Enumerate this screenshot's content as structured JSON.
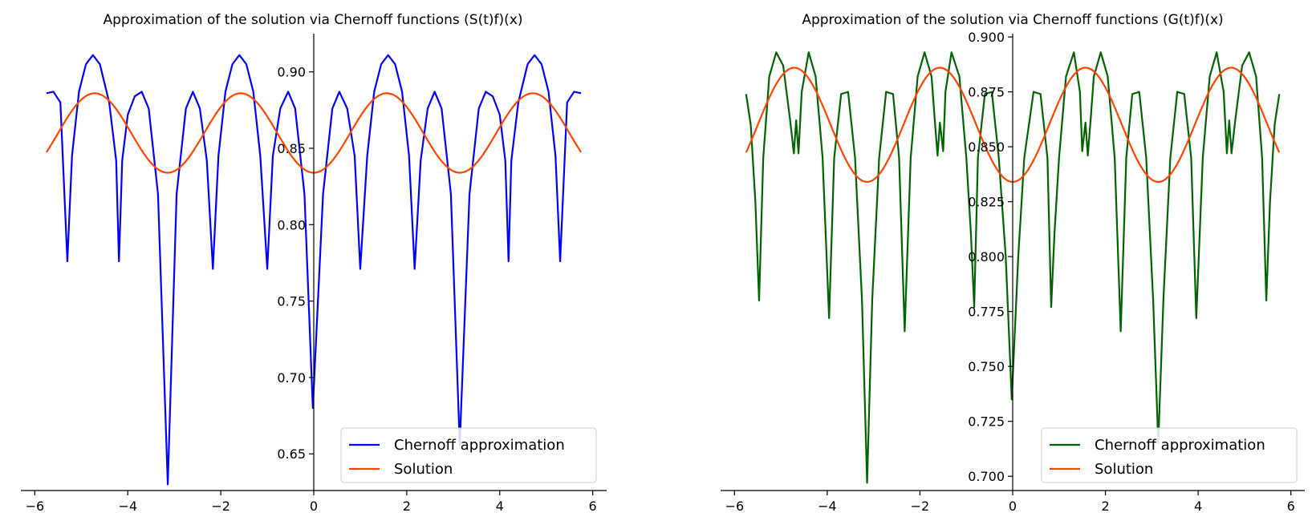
{
  "chart_data": [
    {
      "type": "line",
      "title": "Approximation of the solution via Chernoff functions (S(t)f)(x)",
      "xlabel": "",
      "ylabel": "",
      "xlim": [
        -6.3,
        6.3
      ],
      "ylim": [
        0.626,
        0.925
      ],
      "xticks": [
        -6,
        -4,
        -2,
        0,
        2,
        4,
        6
      ],
      "xtick_labels": [
        "−6",
        "−4",
        "−2",
        "0",
        "2",
        "4",
        "6"
      ],
      "yticks": [
        0.65,
        0.7,
        0.75,
        0.8,
        0.85,
        0.9
      ],
      "ytick_labels": [
        "0.65",
        "0.70",
        "0.75",
        "0.80",
        "0.85",
        "0.90"
      ],
      "x_range": [
        -5.75,
        5.75
      ],
      "grid": false,
      "spines": "centered",
      "legend_position": "lower-right",
      "series": [
        {
          "name": "Chernoff approximation",
          "color": "#0000ff",
          "points": [
            [
              -5.75,
              0.886
            ],
            [
              -5.6,
              0.887
            ],
            [
              -5.45,
              0.88
            ],
            [
              -5.3,
              0.776
            ],
            [
              -5.2,
              0.845
            ],
            [
              -5.05,
              0.887
            ],
            [
              -4.9,
              0.905
            ],
            [
              -4.75,
              0.911
            ],
            [
              -4.6,
              0.905
            ],
            [
              -4.4,
              0.88
            ],
            [
              -4.25,
              0.842
            ],
            [
              -4.19,
              0.776
            ],
            [
              -4.12,
              0.842
            ],
            [
              -4.0,
              0.872
            ],
            [
              -3.85,
              0.884
            ],
            [
              -3.7,
              0.887
            ],
            [
              -3.55,
              0.876
            ],
            [
              -3.35,
              0.82
            ],
            [
              -3.14,
              0.63
            ],
            [
              -2.95,
              0.82
            ],
            [
              -2.75,
              0.876
            ],
            [
              -2.6,
              0.887
            ],
            [
              -2.45,
              0.876
            ],
            [
              -2.3,
              0.842
            ],
            [
              -2.17,
              0.771
            ],
            [
              -2.05,
              0.845
            ],
            [
              -1.9,
              0.887
            ],
            [
              -1.75,
              0.905
            ],
            [
              -1.6,
              0.911
            ],
            [
              -1.45,
              0.905
            ],
            [
              -1.3,
              0.887
            ],
            [
              -1.15,
              0.845
            ],
            [
              -1.0,
              0.771
            ],
            [
              -0.88,
              0.845
            ],
            [
              -0.72,
              0.876
            ],
            [
              -0.55,
              0.887
            ],
            [
              -0.4,
              0.876
            ],
            [
              -0.2,
              0.82
            ],
            [
              -0.02,
              0.68
            ],
            [
              0.2,
              0.82
            ],
            [
              0.4,
              0.876
            ],
            [
              0.55,
              0.887
            ],
            [
              0.72,
              0.876
            ],
            [
              0.88,
              0.845
            ],
            [
              1.0,
              0.771
            ],
            [
              1.15,
              0.845
            ],
            [
              1.3,
              0.887
            ],
            [
              1.45,
              0.905
            ],
            [
              1.6,
              0.911
            ],
            [
              1.75,
              0.905
            ],
            [
              1.9,
              0.887
            ],
            [
              2.05,
              0.845
            ],
            [
              2.17,
              0.771
            ],
            [
              2.3,
              0.842
            ],
            [
              2.45,
              0.876
            ],
            [
              2.6,
              0.887
            ],
            [
              2.75,
              0.876
            ],
            [
              2.95,
              0.82
            ],
            [
              3.14,
              0.656
            ],
            [
              3.35,
              0.82
            ],
            [
              3.55,
              0.876
            ],
            [
              3.7,
              0.887
            ],
            [
              3.85,
              0.884
            ],
            [
              4.0,
              0.872
            ],
            [
              4.12,
              0.842
            ],
            [
              4.19,
              0.776
            ],
            [
              4.25,
              0.842
            ],
            [
              4.4,
              0.88
            ],
            [
              4.6,
              0.905
            ],
            [
              4.75,
              0.911
            ],
            [
              4.9,
              0.905
            ],
            [
              5.05,
              0.887
            ],
            [
              5.2,
              0.845
            ],
            [
              5.3,
              0.776
            ],
            [
              5.45,
              0.88
            ],
            [
              5.6,
              0.887
            ],
            [
              5.75,
              0.886
            ]
          ]
        },
        {
          "name": "Solution",
          "color": "#ff4500",
          "function": "0.86 - 0.026*cos(2x)"
        }
      ]
    },
    {
      "type": "line",
      "title": "Approximation of the solution via Chernoff functions (G(t)f)(x)",
      "xlabel": "",
      "ylabel": "",
      "xlim": [
        -6.3,
        6.3
      ],
      "ylim": [
        0.6935,
        0.9015
      ],
      "xticks": [
        -6,
        -4,
        -2,
        0,
        2,
        4,
        6
      ],
      "xtick_labels": [
        "−6",
        "−4",
        "−2",
        "0",
        "2",
        "4",
        "6"
      ],
      "yticks": [
        0.7,
        0.725,
        0.75,
        0.775,
        0.8,
        0.825,
        0.85,
        0.875,
        0.9
      ],
      "ytick_labels": [
        "0.700",
        "0.725",
        "0.750",
        "0.775",
        "0.800",
        "0.825",
        "0.850",
        "0.875",
        "0.900"
      ],
      "x_range": [
        -5.75,
        5.75
      ],
      "grid": false,
      "spines": "centered",
      "legend_position": "lower-right",
      "series": [
        {
          "name": "Chernoff approximation",
          "color": "#006400",
          "points": [
            [
              -5.75,
              0.874
            ],
            [
              -5.65,
              0.86
            ],
            [
              -5.55,
              0.825
            ],
            [
              -5.47,
              0.78
            ],
            [
              -5.38,
              0.845
            ],
            [
              -5.25,
              0.882
            ],
            [
              -5.1,
              0.893
            ],
            [
              -4.95,
              0.887
            ],
            [
              -4.8,
              0.862
            ],
            [
              -4.72,
              0.847
            ],
            [
              -4.67,
              0.862
            ],
            [
              -4.62,
              0.847
            ],
            [
              -4.55,
              0.875
            ],
            [
              -4.4,
              0.893
            ],
            [
              -4.25,
              0.882
            ],
            [
              -4.1,
              0.845
            ],
            [
              -3.96,
              0.772
            ],
            [
              -3.85,
              0.845
            ],
            [
              -3.7,
              0.874
            ],
            [
              -3.55,
              0.875
            ],
            [
              -3.4,
              0.845
            ],
            [
              -3.25,
              0.78
            ],
            [
              -3.14,
              0.697
            ],
            [
              -3.03,
              0.78
            ],
            [
              -2.88,
              0.845
            ],
            [
              -2.73,
              0.875
            ],
            [
              -2.58,
              0.874
            ],
            [
              -2.45,
              0.845
            ],
            [
              -2.33,
              0.766
            ],
            [
              -2.2,
              0.845
            ],
            [
              -2.05,
              0.882
            ],
            [
              -1.9,
              0.893
            ],
            [
              -1.75,
              0.882
            ],
            [
              -1.68,
              0.862
            ],
            [
              -1.62,
              0.846
            ],
            [
              -1.57,
              0.861
            ],
            [
              -1.5,
              0.848
            ],
            [
              -1.45,
              0.875
            ],
            [
              -1.32,
              0.893
            ],
            [
              -1.15,
              0.882
            ],
            [
              -1.0,
              0.845
            ],
            [
              -0.9,
              0.81
            ],
            [
              -0.83,
              0.777
            ],
            [
              -0.75,
              0.845
            ],
            [
              -0.6,
              0.874
            ],
            [
              -0.45,
              0.875
            ],
            [
              -0.3,
              0.845
            ],
            [
              -0.15,
              0.8
            ],
            [
              -0.02,
              0.735
            ],
            [
              0.12,
              0.8
            ],
            [
              0.25,
              0.845
            ],
            [
              0.45,
              0.875
            ],
            [
              0.6,
              0.874
            ],
            [
              0.75,
              0.845
            ],
            [
              0.83,
              0.777
            ],
            [
              0.9,
              0.81
            ],
            [
              1.0,
              0.845
            ],
            [
              1.15,
              0.882
            ],
            [
              1.32,
              0.893
            ],
            [
              1.45,
              0.875
            ],
            [
              1.5,
              0.848
            ],
            [
              1.57,
              0.861
            ],
            [
              1.62,
              0.846
            ],
            [
              1.68,
              0.862
            ],
            [
              1.75,
              0.882
            ],
            [
              1.9,
              0.893
            ],
            [
              2.05,
              0.882
            ],
            [
              2.2,
              0.845
            ],
            [
              2.33,
              0.766
            ],
            [
              2.45,
              0.845
            ],
            [
              2.58,
              0.874
            ],
            [
              2.73,
              0.875
            ],
            [
              2.88,
              0.845
            ],
            [
              3.03,
              0.78
            ],
            [
              3.14,
              0.715
            ],
            [
              3.25,
              0.78
            ],
            [
              3.4,
              0.845
            ],
            [
              3.55,
              0.875
            ],
            [
              3.7,
              0.874
            ],
            [
              3.85,
              0.845
            ],
            [
              3.96,
              0.772
            ],
            [
              4.1,
              0.845
            ],
            [
              4.25,
              0.882
            ],
            [
              4.4,
              0.893
            ],
            [
              4.55,
              0.875
            ],
            [
              4.62,
              0.847
            ],
            [
              4.67,
              0.862
            ],
            [
              4.72,
              0.847
            ],
            [
              4.8,
              0.862
            ],
            [
              4.95,
              0.887
            ],
            [
              5.1,
              0.893
            ],
            [
              5.25,
              0.882
            ],
            [
              5.38,
              0.845
            ],
            [
              5.47,
              0.78
            ],
            [
              5.55,
              0.825
            ],
            [
              5.65,
              0.86
            ],
            [
              5.75,
              0.874
            ]
          ]
        },
        {
          "name": "Solution",
          "color": "#ff4500",
          "function": "0.86 - 0.026*cos(2x)"
        }
      ]
    }
  ]
}
